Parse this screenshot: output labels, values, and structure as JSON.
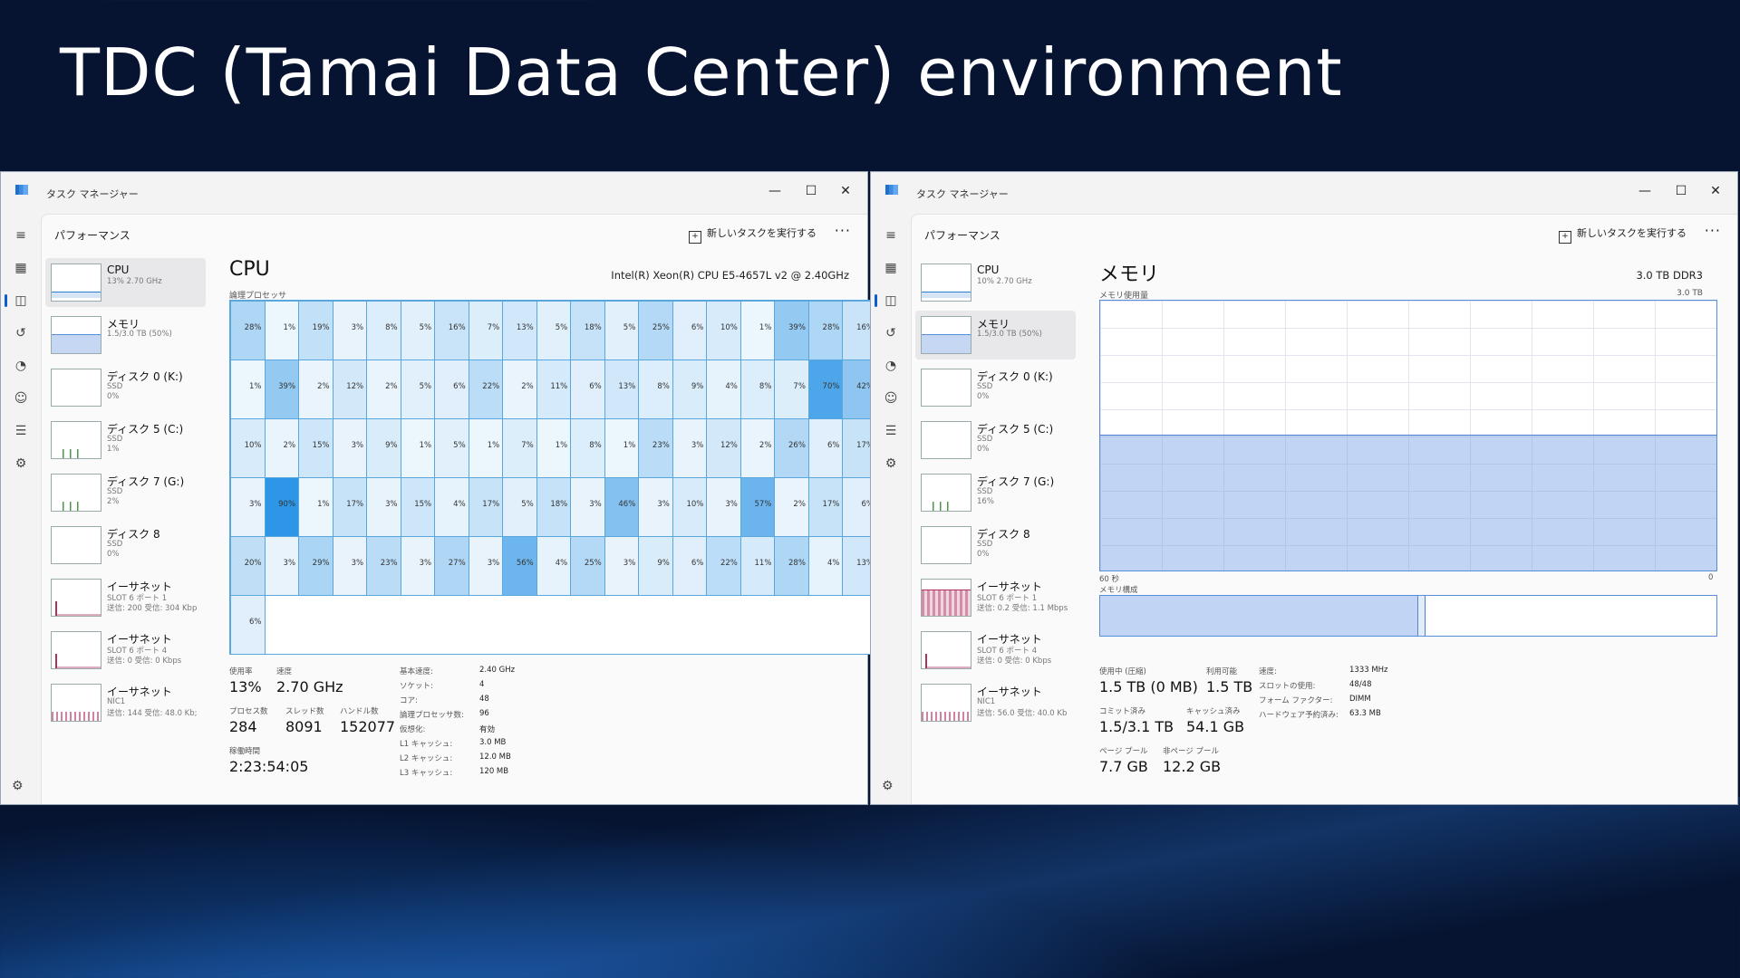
{
  "slide": {
    "title": "TDC (Tamai Data Center) environment"
  },
  "window": {
    "app_title": "タスク マネージャー",
    "controls": {
      "minimize": "—",
      "maximize": "☐",
      "close": "✕"
    },
    "section_title": "パフォーマンス",
    "run_task": "新しいタスクを実行する",
    "more": "···"
  },
  "left": {
    "sidebar": [
      {
        "name": "CPU",
        "sub": "13% 2.70 GHz",
        "sub2": ""
      },
      {
        "name": "メモリ",
        "sub": "1.5/3.0 TB (50%)",
        "sub2": ""
      },
      {
        "name": "ディスク 0 (K:)",
        "sub": "SSD",
        "sub2": "0%"
      },
      {
        "name": "ディスク 5 (C:)",
        "sub": "SSD",
        "sub2": "1%"
      },
      {
        "name": "ディスク 7 (G:)",
        "sub": "SSD",
        "sub2": "2%"
      },
      {
        "name": "ディスク 8",
        "sub": "SSD",
        "sub2": "0%"
      },
      {
        "name": "イーサネット",
        "sub": "SLOT 6 ポート 1",
        "sub2": "送信: 200 受信: 304 Kbp"
      },
      {
        "name": "イーサネット",
        "sub": "SLOT 6 ポート 4",
        "sub2": "送信: 0 受信: 0 Kbps"
      },
      {
        "name": "イーサネット",
        "sub": "NIC1",
        "sub2": "送信: 144 受信: 48.0 Kb;"
      }
    ],
    "title": "CPU",
    "model": "Intel(R) Xeon(R) CPU E5-4657L v2 @ 2.40GHz",
    "grid_caption": "論理プロセッサ",
    "cpu_grid": [
      [
        28,
        1,
        19,
        3,
        8,
        5,
        16,
        7,
        13,
        5,
        18,
        5,
        25,
        6,
        10,
        1,
        39,
        28,
        16
      ],
      [
        1,
        39,
        2,
        12,
        2,
        5,
        6,
        22,
        2,
        11,
        6,
        13,
        8,
        9,
        4,
        8,
        7,
        70,
        42
      ],
      [
        10,
        2,
        15,
        3,
        9,
        1,
        5,
        1,
        7,
        1,
        8,
        1,
        23,
        3,
        12,
        2,
        26,
        6,
        17
      ],
      [
        3,
        90,
        1,
        17,
        3,
        15,
        4,
        17,
        5,
        18,
        3,
        46,
        3,
        10,
        3,
        57,
        2,
        17,
        6
      ],
      [
        20,
        3,
        29,
        3,
        23,
        3,
        27,
        3,
        56,
        4,
        25,
        3,
        9,
        6,
        22,
        11,
        28,
        4,
        13
      ],
      [
        6
      ]
    ],
    "stats": {
      "util_label": "使用率",
      "util": "13%",
      "speed_label": "速度",
      "speed": "2.70 GHz",
      "proc_label": "プロセス数",
      "proc": "284",
      "thread_label": "スレッド数",
      "thread": "8091",
      "handle_label": "ハンドル数",
      "handle": "152077",
      "uptime_label": "稼働時間",
      "uptime": "2:23:54:05",
      "kv": [
        {
          "k": "基本速度:",
          "v": "2.40 GHz"
        },
        {
          "k": "ソケット:",
          "v": "4"
        },
        {
          "k": "コア:",
          "v": "48"
        },
        {
          "k": "論理プロセッサ数:",
          "v": "96"
        },
        {
          "k": "仮想化:",
          "v": "有効"
        },
        {
          "k": "L1 キャッシュ:",
          "v": "3.0 MB"
        },
        {
          "k": "L2 キャッシュ:",
          "v": "12.0 MB"
        },
        {
          "k": "L3 キャッシュ:",
          "v": "120 MB"
        }
      ]
    }
  },
  "right": {
    "sidebar": [
      {
        "name": "CPU",
        "sub": "10% 2.70 GHz",
        "sub2": ""
      },
      {
        "name": "メモリ",
        "sub": "1.5/3.0 TB (50%)",
        "sub2": ""
      },
      {
        "name": "ディスク 0 (K:)",
        "sub": "SSD",
        "sub2": "0%"
      },
      {
        "name": "ディスク 5 (C:)",
        "sub": "SSD",
        "sub2": "0%"
      },
      {
        "name": "ディスク 7 (G:)",
        "sub": "SSD",
        "sub2": "16%"
      },
      {
        "name": "ディスク 8",
        "sub": "SSD",
        "sub2": "0%"
      },
      {
        "name": "イーサネット",
        "sub": "SLOT 6 ポート 1",
        "sub2": "送信: 0.2 受信: 1.1 Mbps"
      },
      {
        "name": "イーサネット",
        "sub": "SLOT 6 ポート 4",
        "sub2": "送信: 0 受信: 0 Kbps"
      },
      {
        "name": "イーサネット",
        "sub": "NIC1",
        "sub2": "送信: 56.0 受信: 40.0 Kb"
      }
    ],
    "title": "メモリ",
    "model": "3.0 TB DDR3",
    "graph_caption": "メモリ使用量",
    "graph_max": "3.0 TB",
    "graph_left": "60 秒",
    "graph_right": "0",
    "mem_used_fraction": 0.5,
    "comp_caption": "メモリ構成",
    "stats": {
      "inuse_label": "使用中 (圧縮)",
      "inuse": "1.5 TB (0 MB)",
      "avail_label": "利用可能",
      "avail": "1.5 TB",
      "commit_label": "コミット済み",
      "commit": "1.5/3.1 TB",
      "cached_label": "キャッシュ済み",
      "cached": "54.1 GB",
      "paged_label": "ページ プール",
      "paged": "7.7 GB",
      "nonpaged_label": "非ページ プール",
      "nonpaged": "12.2 GB",
      "kv": [
        {
          "k": "速度:",
          "v": "1333 MHz"
        },
        {
          "k": "スロットの使用:",
          "v": "48/48"
        },
        {
          "k": "フォーム ファクター:",
          "v": "DIMM"
        },
        {
          "k": "ハードウェア予約済み:",
          "v": "63.3 MB"
        }
      ]
    }
  }
}
